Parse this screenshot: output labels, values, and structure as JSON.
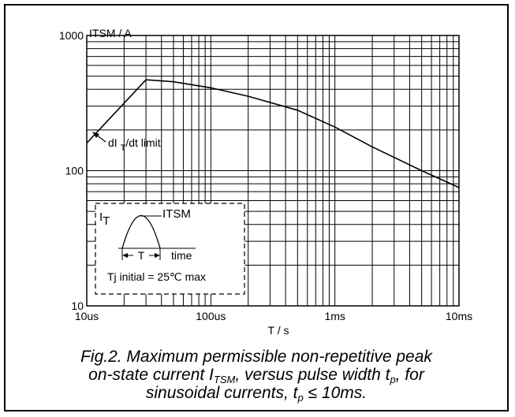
{
  "chart_data": {
    "type": "line",
    "title": "",
    "ylabel": "ITSM / A",
    "xlabel": "T / s",
    "xscale": "log",
    "yscale": "log",
    "xlim": [
      1e-05,
      0.01
    ],
    "ylim": [
      10,
      1000
    ],
    "x_ticks": [
      {
        "value": 1e-05,
        "label": "10us"
      },
      {
        "value": 0.0001,
        "label": "100us"
      },
      {
        "value": 0.001,
        "label": "1ms"
      },
      {
        "value": 0.01,
        "label": "10ms"
      }
    ],
    "y_ticks": [
      {
        "value": 10,
        "label": "10"
      },
      {
        "value": 100,
        "label": "100"
      },
      {
        "value": 1000,
        "label": "1000"
      }
    ],
    "grid": true,
    "series": [
      {
        "x": [
          1e-05,
          3e-05,
          5e-05,
          0.0001,
          0.0002,
          0.0005,
          0.001,
          0.002,
          0.005,
          0.01
        ],
        "y": [
          160,
          470,
          455,
          410,
          355,
          280,
          210,
          150,
          100,
          75
        ]
      }
    ],
    "annotations": {
      "didt": {
        "text": "dI T/dt limit",
        "main": "dI ",
        "sub": "T",
        "rest": "/dt limit"
      }
    },
    "inset": {
      "it_main": "I",
      "it_sub": "T",
      "itsm_main": "I",
      "itsm_sub": "TSM",
      "T_label": "T",
      "time_label": "time",
      "note": "Tj initial = 25℃ max"
    }
  },
  "caption": {
    "line1": "Fig.2.   Maximum permissible non-repetitive peak",
    "line2_a": "on-state current I",
    "line2_sub": "TSM",
    "line2_b": ", versus pulse width t",
    "line2_sub2": "p",
    "line2_c": ", for",
    "line3_a": "sinusoidal currents, t",
    "line3_sub": "p",
    "line3_b": " ≤ 10ms."
  }
}
